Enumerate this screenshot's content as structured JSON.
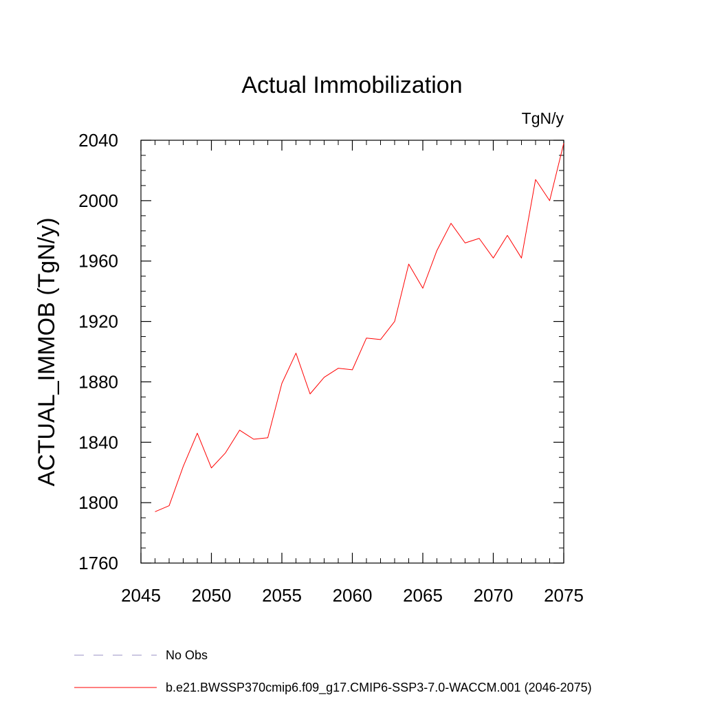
{
  "chart_data": {
    "type": "line",
    "title": "Actual Immobilization",
    "units": "TgN/y",
    "xlabel": "",
    "ylabel": "ACTUAL_IMMOB  (TgN/y)",
    "xlim": [
      2045,
      2075
    ],
    "ylim": [
      1760,
      2040
    ],
    "x_ticks": [
      2045,
      2050,
      2055,
      2060,
      2065,
      2070,
      2075
    ],
    "y_ticks": [
      1760,
      1800,
      1840,
      1880,
      1920,
      1960,
      2000,
      2040
    ],
    "grid": false,
    "legend_position": "bottom",
    "series": [
      {
        "name": "b.e21.BWSSP370cmip6.f09_g17.CMIP6-SSP3-7.0-WACCM.001 (2046-2075)",
        "color": "#ff0000",
        "x": [
          2046,
          2047,
          2048,
          2049,
          2050,
          2051,
          2052,
          2053,
          2054,
          2055,
          2056,
          2057,
          2058,
          2059,
          2060,
          2061,
          2062,
          2063,
          2064,
          2065,
          2066,
          2067,
          2068,
          2069,
          2070,
          2071,
          2072,
          2073,
          2074,
          2075
        ],
        "values": [
          1794,
          1798,
          1824,
          1846,
          1823,
          1833,
          1848,
          1842,
          1843,
          1879,
          1899,
          1872,
          1883,
          1889,
          1888,
          1909,
          1908,
          1920,
          1958,
          1942,
          1967,
          1985,
          1972,
          1975,
          1962,
          1977,
          1962,
          2014,
          2000,
          2038
        ]
      }
    ],
    "legend": [
      {
        "label": "No Obs",
        "style": "dashed",
        "color": "#9a8fc4"
      },
      {
        "label": "b.e21.BWSSP370cmip6.f09_g17.CMIP6-SSP3-7.0-WACCM.001 (2046-2075)",
        "style": "solid",
        "color": "#ff0000"
      }
    ]
  }
}
